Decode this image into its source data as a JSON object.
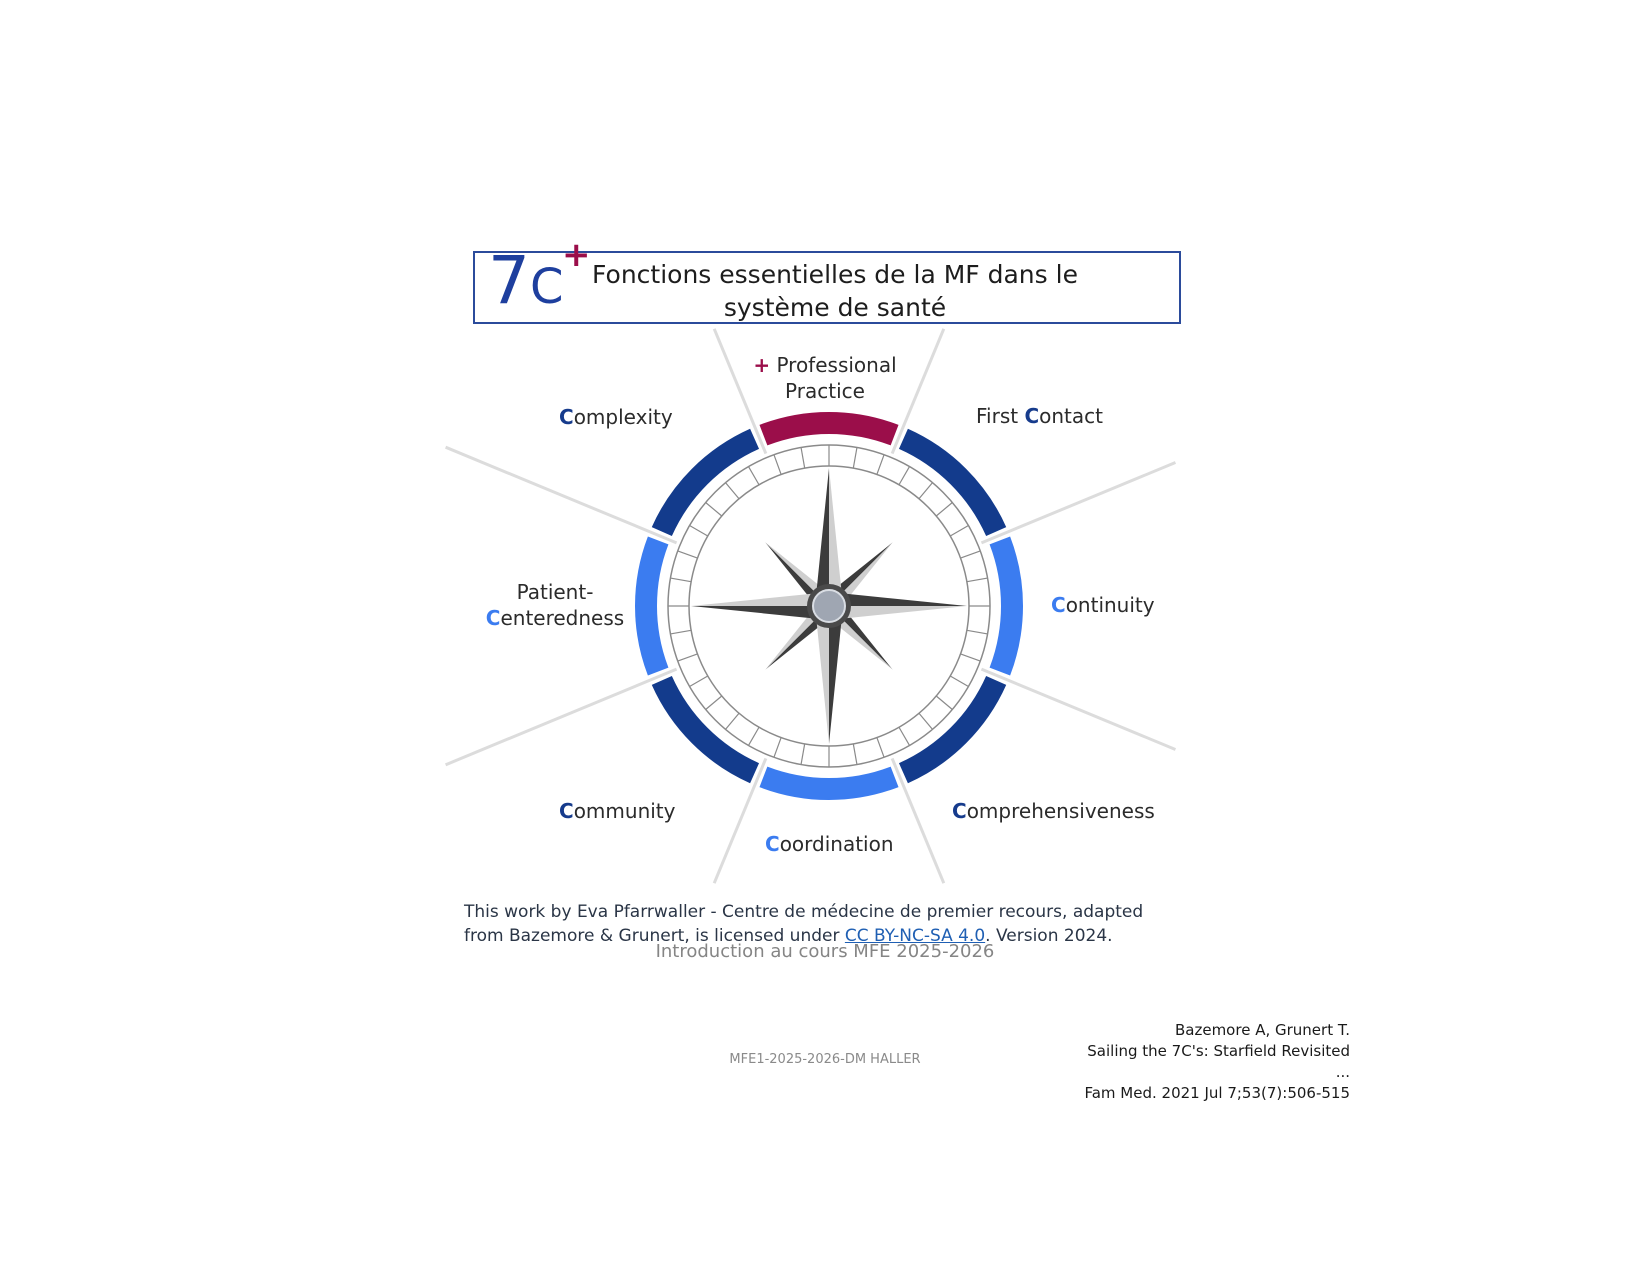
{
  "logo": {
    "number": "7",
    "letter": "C",
    "plus": "+"
  },
  "title": "Fonctions essentielles de la MF dans le système de santé",
  "colors": {
    "dark_blue": "#133b8c",
    "light_blue": "#3b7cf0",
    "crimson": "#9b0e4a",
    "frame": "#2b4b9b"
  },
  "functions": [
    {
      "key": "professional",
      "prefix": "+",
      "initial": "",
      "rest": "Professional",
      "line2": "Practice",
      "color": "crimson"
    },
    {
      "key": "first-contact",
      "prefix": "First ",
      "initial": "C",
      "rest": "ontact",
      "color": "dark_blue"
    },
    {
      "key": "continuity",
      "initial": "C",
      "rest": "ontinuity",
      "color": "light_blue"
    },
    {
      "key": "comprehensiveness",
      "initial": "C",
      "rest": "omprehensiveness",
      "color": "dark_blue"
    },
    {
      "key": "coordination",
      "initial": "C",
      "rest": "oordination",
      "color": "light_blue"
    },
    {
      "key": "community",
      "initial": "C",
      "rest": "ommunity",
      "color": "dark_blue"
    },
    {
      "key": "patient-centeredness",
      "line1": "Patient-",
      "initial": "C",
      "rest": "enteredness",
      "color": "light_blue"
    },
    {
      "key": "complexity",
      "initial": "C",
      "rest": "omplexity",
      "color": "dark_blue"
    }
  ],
  "credit": {
    "before": "This work by Eva Pfarrwaller - Centre de médecine de premier recours, adapted from Bazemore & Grunert, is licensed under ",
    "link": "CC BY-NC-SA 4.0",
    "after": ". Version 2024."
  },
  "subtitle": "Introduction au cours MFE 2025-2026",
  "footer": "MFE1-2025-2026-DM HALLER",
  "reference": {
    "line1": "Bazemore A, Grunert T.",
    "line2": "Sailing the 7C's: Starfield Revisited",
    "line3": "...",
    "line4": "Fam Med. 2021 Jul 7;53(7):506-515"
  }
}
